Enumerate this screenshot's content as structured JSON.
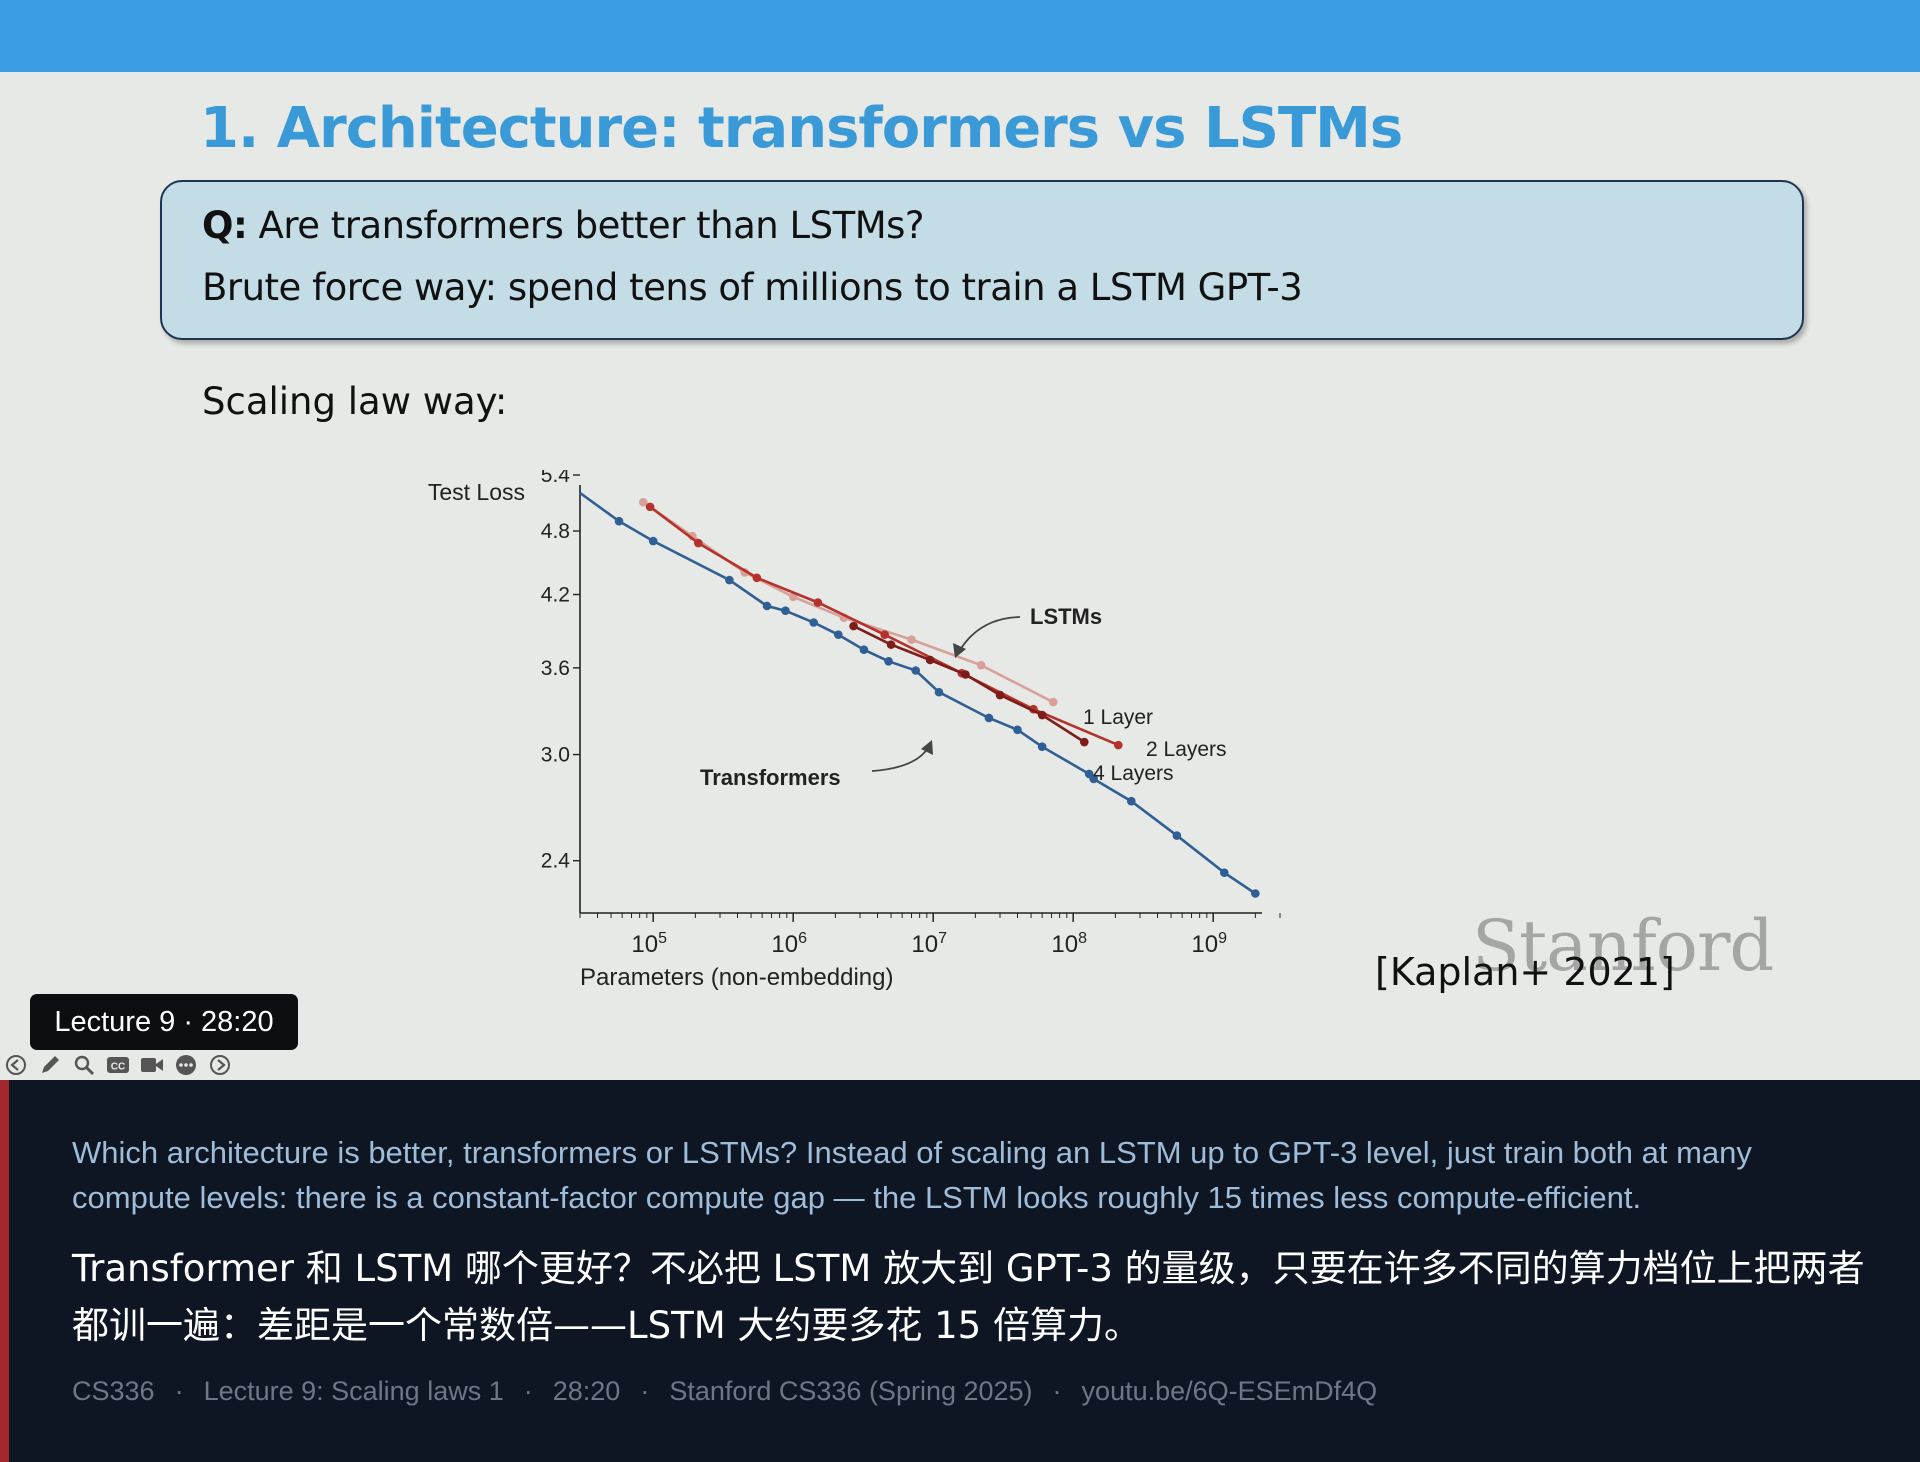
{
  "slide": {
    "title": "1. Architecture: transformers vs LSTMs",
    "question_prefix": "Q:",
    "question_text": "Are transformers better than LSTMs?",
    "brute_force_line": "Brute force way: spend tens of millions to train a LSTM GPT-3",
    "scaling_label": "Scaling law way:",
    "citation": "[Kaplan+ 2021]",
    "logo": "Stanford"
  },
  "chart_data": {
    "type": "line",
    "title": "",
    "xlabel": "Parameters (non-embedding)",
    "ylabel": "Test Loss",
    "x_scale": "log",
    "y_scale": "log",
    "xlim": [
      30000,
      3000000000
    ],
    "ylim": [
      2.15,
      5.4
    ],
    "x_ticks": [
      {
        "value": 100000,
        "base": "10",
        "exp": "5"
      },
      {
        "value": 1000000,
        "base": "10",
        "exp": "6"
      },
      {
        "value": 10000000,
        "base": "10",
        "exp": "7"
      },
      {
        "value": 100000000,
        "base": "10",
        "exp": "8"
      },
      {
        "value": 1000000000,
        "base": "10",
        "exp": "9"
      }
    ],
    "y_ticks": [
      "5.4",
      "4.8",
      "4.2",
      "3.6",
      "3.0",
      "2.4"
    ],
    "annotations": {
      "lstms": "LSTMs",
      "transformers": "Transformers"
    },
    "series": [
      {
        "name": "Transformers",
        "color": "#2f5f94",
        "points": [
          [
            30000,
            5.2
          ],
          [
            57000,
            4.9
          ],
          [
            100000,
            4.7
          ],
          [
            350000,
            4.33
          ],
          [
            650000,
            4.1
          ],
          [
            880000,
            4.06
          ],
          [
            1400000,
            3.96
          ],
          [
            2100000,
            3.86
          ],
          [
            3200000,
            3.74
          ],
          [
            4800000,
            3.65
          ],
          [
            7500000,
            3.58
          ],
          [
            11000000,
            3.42
          ],
          [
            25000000,
            3.24
          ],
          [
            40000000,
            3.16
          ],
          [
            60000000,
            3.05
          ],
          [
            130000000,
            2.88
          ],
          [
            140000000,
            2.85
          ],
          [
            260000000,
            2.72
          ],
          [
            550000000,
            2.53
          ],
          [
            1200000000,
            2.34
          ],
          [
            2000000000,
            2.24
          ]
        ],
        "label": ""
      },
      {
        "name": "1 Layer",
        "color": "#d9a09a",
        "points": [
          [
            85000,
            5.1
          ],
          [
            190000,
            4.75
          ],
          [
            450000,
            4.4
          ],
          [
            1000000,
            4.18
          ],
          [
            2300000,
            4.0
          ],
          [
            7000000,
            3.82
          ],
          [
            22000000,
            3.62
          ],
          [
            72000000,
            3.35
          ]
        ],
        "label": "1 Layer"
      },
      {
        "name": "2 Layers",
        "color": "#b4322b",
        "points": [
          [
            95000,
            5.05
          ],
          [
            210000,
            4.68
          ],
          [
            550000,
            4.35
          ],
          [
            1500000,
            4.13
          ],
          [
            4500000,
            3.86
          ],
          [
            16000000,
            3.56
          ],
          [
            52000000,
            3.3
          ],
          [
            210000000,
            3.06
          ]
        ],
        "label": "2 Layers"
      },
      {
        "name": "4 Layers",
        "color": "#7d1c19",
        "points": [
          [
            2700000,
            3.93
          ],
          [
            5000000,
            3.78
          ],
          [
            9500000,
            3.66
          ],
          [
            17000000,
            3.55
          ],
          [
            30000000,
            3.4
          ],
          [
            60000000,
            3.26
          ],
          [
            120000000,
            3.08
          ]
        ],
        "label": "4 Layers"
      }
    ]
  },
  "player": {
    "badge": "Lecture 9 · 28:20",
    "toolbar_icons": [
      "prev-icon",
      "pen-icon",
      "zoom-icon",
      "cc-icon",
      "video-icon",
      "more-icon",
      "next-icon"
    ]
  },
  "subtitles": {
    "english": "Which architecture is better, transformers or LSTMs? Instead of scaling an LSTM up to GPT-3 level, just train both at many compute levels: there is a constant-factor compute gap — the LSTM looks roughly 15 times less compute-efficient.",
    "chinese": "Transformer 和 LSTM 哪个更好？不必把 LSTM 放大到 GPT-3 的量级，只要在许多不同的算力档位上把两者都训一遍：差距是一个常数倍——LSTM 大约要多花 15 倍算力。",
    "meta": [
      "CS336",
      "·",
      "Lecture 9: Scaling laws 1",
      "·",
      "28:20",
      "·",
      "Stanford CS336 (Spring 2025)",
      "·",
      "youtu.be/6Q-ESEmDf4Q"
    ]
  },
  "colors": {
    "top_band": "#3b9de3",
    "title": "#3a9ad8",
    "subtitle_panel": "#0f1623",
    "accent": "#a3282e"
  }
}
